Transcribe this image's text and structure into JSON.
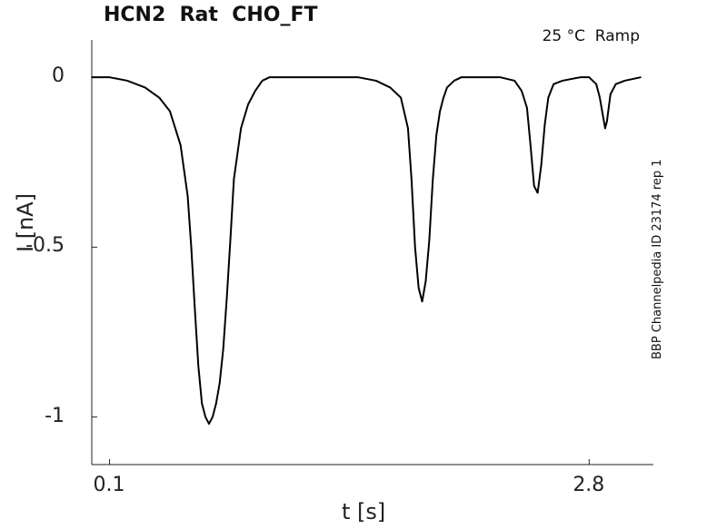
{
  "chart_data": {
    "type": "line",
    "title": "HCN2  Rat  CHO_FT",
    "condition": "25 °C  Ramp",
    "source_note": "BBP Channelpedia ID 23174 rep 1",
    "xlabel": "t [s]",
    "ylabel": "I [nA]",
    "xlim": [
      0.0,
      3.09
    ],
    "ylim": [
      -1.14,
      0.11
    ],
    "x_ticks": [
      {
        "value": 0.1,
        "label": "0.1"
      },
      {
        "value": 2.8,
        "label": "2.8"
      }
    ],
    "y_ticks": [
      {
        "value": 0,
        "label": "0"
      },
      {
        "value": -0.5,
        "label": "-0.5"
      },
      {
        "value": -1,
        "label": "-1"
      }
    ],
    "grid": false,
    "line_color": "#000000",
    "series": [
      {
        "x": [
          0.0,
          0.1,
          0.2,
          0.3,
          0.38,
          0.44,
          0.5,
          0.54,
          0.56,
          0.58,
          0.6,
          0.62,
          0.64,
          0.66,
          0.68,
          0.7,
          0.72,
          0.74,
          0.76,
          0.78,
          0.8,
          0.84,
          0.88,
          0.92,
          0.96,
          1.0,
          1.1,
          1.2,
          1.35,
          1.5,
          1.6,
          1.68,
          1.74,
          1.78,
          1.8,
          1.82,
          1.84,
          1.86,
          1.88,
          1.9,
          1.92,
          1.94,
          1.96,
          1.98,
          2.0,
          2.04,
          2.08,
          2.12,
          2.2,
          2.3,
          2.38,
          2.42,
          2.45,
          2.47,
          2.49,
          2.51,
          2.53,
          2.55,
          2.57,
          2.6,
          2.65,
          2.75,
          2.8,
          2.84,
          2.86,
          2.88,
          2.89,
          2.9,
          2.92,
          2.95,
          3.0,
          3.09
        ],
        "y": [
          0.0,
          0.0,
          -0.01,
          -0.03,
          -0.06,
          -0.1,
          -0.2,
          -0.35,
          -0.5,
          -0.68,
          -0.85,
          -0.96,
          -1.0,
          -1.02,
          -1.0,
          -0.96,
          -0.9,
          -0.8,
          -0.65,
          -0.48,
          -0.3,
          -0.15,
          -0.08,
          -0.04,
          -0.01,
          0.0,
          0.0,
          0.0,
          0.0,
          0.0,
          -0.01,
          -0.03,
          -0.06,
          -0.15,
          -0.3,
          -0.5,
          -0.62,
          -0.66,
          -0.6,
          -0.48,
          -0.3,
          -0.17,
          -0.1,
          -0.06,
          -0.03,
          -0.01,
          0.0,
          0.0,
          0.0,
          0.0,
          -0.01,
          -0.04,
          -0.09,
          -0.2,
          -0.32,
          -0.34,
          -0.26,
          -0.14,
          -0.06,
          -0.02,
          -0.01,
          0.0,
          0.0,
          -0.02,
          -0.06,
          -0.12,
          -0.15,
          -0.13,
          -0.05,
          -0.02,
          -0.01,
          0.0
        ]
      }
    ]
  }
}
